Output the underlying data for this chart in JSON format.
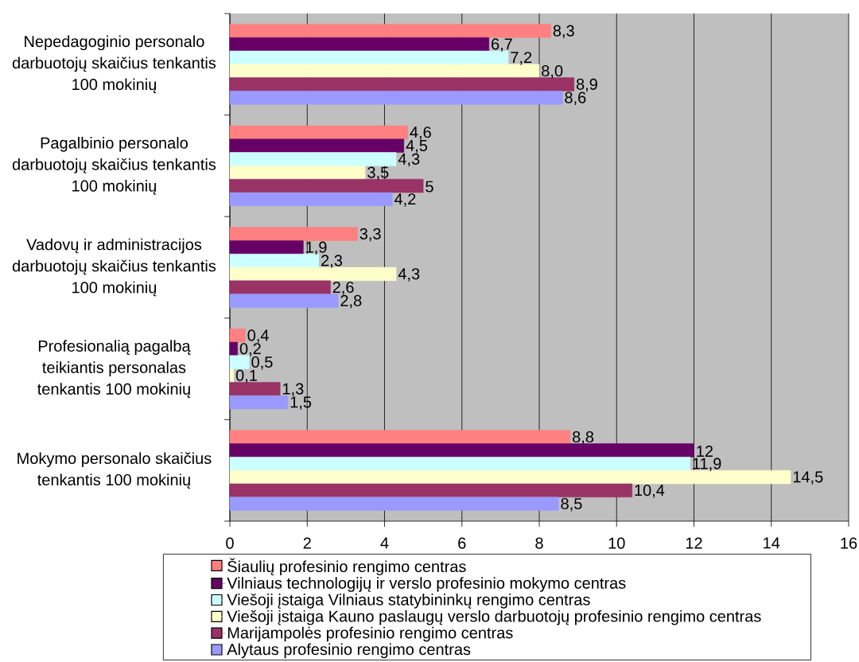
{
  "chart_data": {
    "type": "bar",
    "orientation": "horizontal",
    "categories": [
      "Nepedagoginio personalo darbuotojų skaičius tenkantis 100 mokinių",
      "Pagalbinio personalo darbuotojų skaičius tenkantis 100 mokinių",
      "Vadovų ir administracijos darbuotojų skaičius tenkantis 100 mokinių",
      "Profesionalią pagalbą teikiantis personalas tenkantis 100 mokinių",
      "Mokymo personalo skaičius tenkantis 100 mokinių"
    ],
    "series": [
      {
        "name": "Šiaulių profesinio rengimo centras",
        "color": "#ff8080",
        "values": [
          8.3,
          4.6,
          3.3,
          0.4,
          8.8
        ],
        "value_labels": [
          "8,3",
          "4,6",
          "3,3",
          "0,4",
          "8,8"
        ]
      },
      {
        "name": "Vilniaus technologijų ir verslo profesinio mokymo centras",
        "color": "#660066",
        "values": [
          6.7,
          4.5,
          1.9,
          0.2,
          12
        ],
        "value_labels": [
          "6,7",
          "4,5",
          "1,9",
          "0,2",
          "12"
        ]
      },
      {
        "name": "Viešoji įstaiga Vilniaus statybininkų rengimo centras",
        "color": "#ccffff",
        "values": [
          7.2,
          4.3,
          2.3,
          0.5,
          11.9
        ],
        "value_labels": [
          "7,2",
          "4,3",
          "2,3",
          "0,5",
          "11,9"
        ]
      },
      {
        "name": "Viešoji įstaiga Kauno paslaugų verslo darbuotojų profesinio rengimo centras",
        "color": "#ffffcc",
        "values": [
          8.0,
          3.5,
          4.3,
          0.1,
          14.5
        ],
        "value_labels": [
          "8,0",
          "3,5",
          "4,3",
          "0,1",
          "14,5"
        ]
      },
      {
        "name": "Marijampolės profesinio rengimo centras",
        "color": "#993366",
        "values": [
          8.9,
          5,
          2.6,
          1.3,
          10.4
        ],
        "value_labels": [
          "8,9",
          "5",
          "2,6",
          "1,3",
          "10,4"
        ]
      },
      {
        "name": "Alytaus profesinio rengimo centras",
        "color": "#9999ff",
        "values": [
          8.6,
          4.2,
          2.8,
          1.5,
          8.5
        ],
        "value_labels": [
          "8,6",
          "4,2",
          "2,8",
          "1,5",
          "8,5"
        ]
      }
    ],
    "xlim": [
      0,
      16
    ],
    "xticks": [
      0,
      2,
      4,
      6,
      8,
      10,
      12,
      14,
      16
    ],
    "grid": "x",
    "legend": "bottom"
  }
}
